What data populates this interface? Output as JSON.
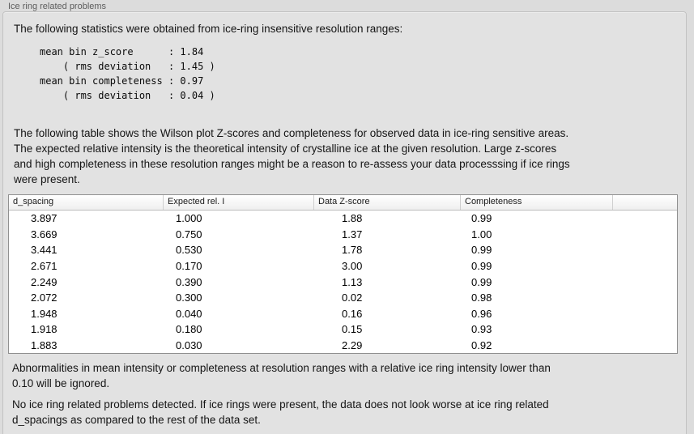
{
  "group": {
    "label": "Ice ring related problems"
  },
  "intro": "The following statistics were obtained from ice-ring insensitive resolution ranges:",
  "stats_block": "mean bin z_score      : 1.84\n    ( rms deviation   : 1.45 )\nmean bin completeness : 0.97\n    ( rms deviation   : 0.04 )",
  "stats": {
    "mean_bin_z_score": "1.84",
    "z_score_rms_deviation": "1.45",
    "mean_bin_completeness": "0.97",
    "completeness_rms_deviation": "0.04"
  },
  "table_description": "The following table shows the Wilson plot Z-scores and completeness for observed data in ice-ring sensitive areas.\nThe expected relative intensity is the theoretical intensity of crystalline ice at the given resolution. Large z-scores\nand high completeness in these resolution ranges might be a reason to re-assess your data processsing if ice rings\nwere present.",
  "table": {
    "columns": [
      "d_spacing",
      "Expected rel. I",
      "Data Z-score",
      "Completeness"
    ],
    "rows": [
      [
        "3.897",
        "1.000",
        "1.88",
        "0.99"
      ],
      [
        "3.669",
        "0.750",
        "1.37",
        "1.00"
      ],
      [
        "3.441",
        "0.530",
        "1.78",
        "0.99"
      ],
      [
        "2.671",
        "0.170",
        "3.00",
        "0.99"
      ],
      [
        "2.249",
        "0.390",
        "1.13",
        "0.99"
      ],
      [
        "2.072",
        "0.300",
        "0.02",
        "0.98"
      ],
      [
        "1.948",
        "0.040",
        "0.16",
        "0.96"
      ],
      [
        "1.918",
        "0.180",
        "0.15",
        "0.93"
      ],
      [
        "1.883",
        "0.030",
        "2.29",
        "0.92"
      ]
    ]
  },
  "notes": {
    "ignore_note": "Abnormalities in mean intensity or completeness at resolution ranges with a relative ice ring intensity lower than\n0.10 will be ignored.",
    "conclusion": "No ice ring related problems detected. If ice rings were present, the data does not look worse at ice ring related\nd_spacings as compared to the rest of the data set."
  },
  "colors": {
    "window_bg": "#dcdcdc",
    "panel_bg": "#e2e2e2",
    "panel_border": "#c2c2c2",
    "table_border": "#909090",
    "header_bg_top": "#ffffff",
    "header_bg_bottom": "#efefef",
    "text": "#151515",
    "label": "#5d5d5d"
  }
}
